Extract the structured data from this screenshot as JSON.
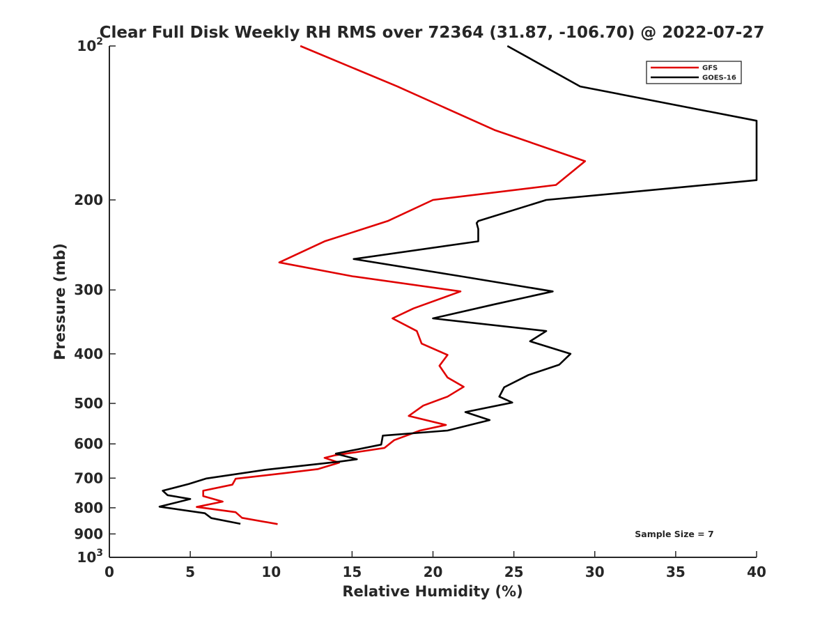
{
  "chart_data": {
    "type": "line",
    "title": "Clear Full Disk Weekly RH RMS over 72364 (31.87, -106.70) @ 2022-07-27",
    "xlabel": "Relative Humidity (%)",
    "ylabel": "Pressure (mb)",
    "xlim": [
      0,
      40
    ],
    "ylim": [
      100,
      1000
    ],
    "y_scale": "log",
    "y_reversed": true,
    "grid": false,
    "x_ticks": [
      0,
      5,
      10,
      15,
      20,
      25,
      30,
      35,
      40
    ],
    "y_ticks": [
      {
        "value": 100,
        "base": "10",
        "exp": "2"
      },
      {
        "value": 200,
        "label": "200"
      },
      {
        "value": 300,
        "label": "300"
      },
      {
        "value": 400,
        "label": "400"
      },
      {
        "value": 500,
        "label": "500"
      },
      {
        "value": 600,
        "label": "600"
      },
      {
        "value": 700,
        "label": "700"
      },
      {
        "value": 800,
        "label": "800"
      },
      {
        "value": 900,
        "label": "900"
      },
      {
        "value": 1000,
        "base": "10",
        "exp": "3"
      }
    ],
    "legend_position": "top-right",
    "series": [
      {
        "name": "GFS",
        "color": "#e00000",
        "points": [
          [
            11.8,
            100
          ],
          [
            17.8,
            120
          ],
          [
            23.8,
            146
          ],
          [
            29.4,
            168
          ],
          [
            27.6,
            187
          ],
          [
            20.0,
            200
          ],
          [
            17.2,
            220
          ],
          [
            13.3,
            241
          ],
          [
            10.5,
            265
          ],
          [
            15.0,
            282
          ],
          [
            21.7,
            302
          ],
          [
            18.8,
            326
          ],
          [
            17.5,
            341
          ],
          [
            19.0,
            361
          ],
          [
            19.3,
            382
          ],
          [
            20.9,
            402
          ],
          [
            20.4,
            422
          ],
          [
            20.9,
            445
          ],
          [
            21.9,
            464
          ],
          [
            20.9,
            485
          ],
          [
            19.4,
            505
          ],
          [
            18.5,
            529
          ],
          [
            20.8,
            551
          ],
          [
            19.2,
            565
          ],
          [
            17.6,
            590
          ],
          [
            17.0,
            611
          ],
          [
            13.9,
            632
          ],
          [
            13.3,
            639
          ],
          [
            14.2,
            653
          ],
          [
            12.9,
            672
          ],
          [
            10.9,
            684
          ],
          [
            7.8,
            702
          ],
          [
            7.6,
            721
          ],
          [
            5.8,
            741
          ],
          [
            5.8,
            759
          ],
          [
            7.0,
            778
          ],
          [
            5.4,
            797
          ],
          [
            7.8,
            816
          ],
          [
            8.2,
            837
          ],
          [
            10.4,
            861
          ]
        ]
      },
      {
        "name": "GOES-16",
        "color": "#000000",
        "points": [
          [
            24.6,
            100
          ],
          [
            29.1,
            120
          ],
          [
            40.0,
            140
          ],
          [
            40.0,
            183
          ],
          [
            27.0,
            200
          ],
          [
            22.8,
            220
          ],
          [
            22.7,
            222
          ],
          [
            22.8,
            228
          ],
          [
            22.8,
            241
          ],
          [
            15.1,
            261
          ],
          [
            21.7,
            282
          ],
          [
            27.4,
            302
          ],
          [
            23.8,
            320
          ],
          [
            20.0,
            341
          ],
          [
            27.0,
            361
          ],
          [
            26.0,
            378
          ],
          [
            28.5,
            400
          ],
          [
            27.8,
            420
          ],
          [
            25.9,
            440
          ],
          [
            24.4,
            465
          ],
          [
            24.1,
            485
          ],
          [
            24.9,
            498
          ],
          [
            22.0,
            520
          ],
          [
            23.5,
            539
          ],
          [
            20.9,
            565
          ],
          [
            16.9,
            578
          ],
          [
            16.8,
            602
          ],
          [
            14.0,
            627
          ],
          [
            15.3,
            643
          ],
          [
            14.2,
            650
          ],
          [
            9.7,
            674
          ],
          [
            6.0,
            701
          ],
          [
            4.9,
            719
          ],
          [
            3.3,
            741
          ],
          [
            3.6,
            756
          ],
          [
            5.0,
            769
          ],
          [
            3.1,
            796
          ],
          [
            5.9,
            820
          ],
          [
            6.3,
            838
          ],
          [
            8.1,
            860
          ]
        ]
      }
    ],
    "annotations": [
      {
        "text": "Sample Size = 7",
        "x": 36.6,
        "y": 900
      }
    ]
  }
}
